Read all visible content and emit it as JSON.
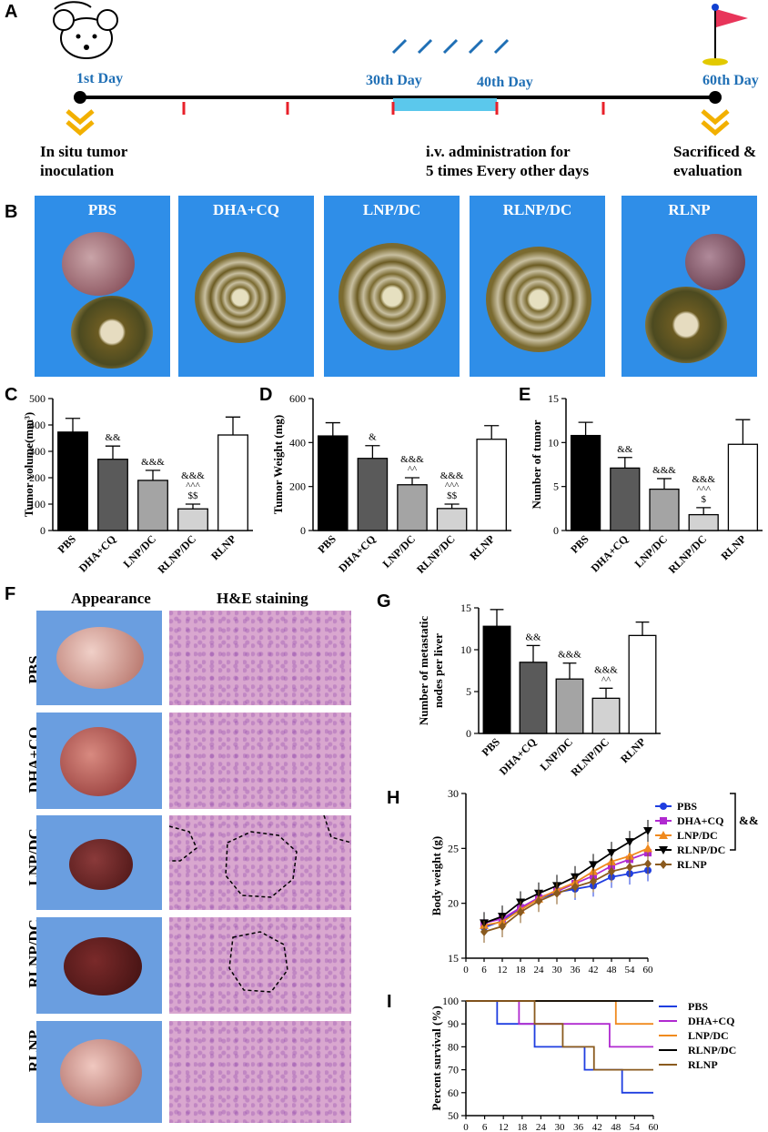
{
  "panels": {
    "A": "A",
    "B": "B",
    "C": "C",
    "D": "D",
    "E": "E",
    "F": "F",
    "G": "G",
    "H": "H",
    "I": "I"
  },
  "timeline": {
    "day1": "1st Day",
    "day30": "30th Day",
    "day40": "40th Day",
    "day60": "60th Day",
    "left_note_1": "In situ tumor",
    "left_note_2": "inoculation",
    "mid_note_1": "i.v. administration for",
    "mid_note_2": "5 times Every other days",
    "right_note_1": "Sacrificed &",
    "right_note_2": "evaluation"
  },
  "photos": [
    "PBS",
    "DHA+CQ",
    "LNP/DC",
    "RLNP/DC",
    "RLNP"
  ],
  "F": {
    "col1": "Appearance",
    "col2": "H&E staining",
    "rows": [
      "PBS",
      "DHA+CQ",
      "LNP/DC",
      "RLNP/DC",
      "RLNP"
    ]
  },
  "colors": {
    "black": "#000000",
    "dark": "#5a5a5a",
    "mid": "#a4a4a4",
    "light": "#d2d2d2",
    "white": "#ffffff",
    "photo_blue": "#2f8ee8"
  },
  "chart_data": [
    {
      "id": "C",
      "type": "bar",
      "categories": [
        "PBS",
        "DHA+CQ",
        "LNP/DC",
        "RLNP/DC",
        "RLNP"
      ],
      "values": [
        373,
        270,
        190,
        82,
        362
      ],
      "errors": [
        52,
        50,
        38,
        18,
        68
      ],
      "ylabel": "Tumor volume(mm³)",
      "ylim": [
        0,
        500
      ],
      "yticks": [
        0,
        100,
        200,
        300,
        400,
        500
      ],
      "annotations": [
        [],
        [
          "&&"
        ],
        [
          "&&&"
        ],
        [
          "&&&",
          "^^^",
          "$$"
        ],
        []
      ]
    },
    {
      "id": "D",
      "type": "bar",
      "categories": [
        "PBS",
        "DHA+CQ",
        "LNP/DC",
        "RLNP/DC",
        "RLNP"
      ],
      "values": [
        430,
        328,
        208,
        100,
        415
      ],
      "errors": [
        60,
        58,
        32,
        20,
        62
      ],
      "ylabel": "Tumor Weight (mg)",
      "ylim": [
        0,
        600
      ],
      "yticks": [
        0,
        200,
        400,
        600
      ],
      "annotations": [
        [],
        [
          "&"
        ],
        [
          "&&&",
          "^^"
        ],
        [
          "&&&",
          "^^^",
          "$$"
        ],
        []
      ]
    },
    {
      "id": "E",
      "type": "bar",
      "categories": [
        "PBS",
        "DHA+CQ",
        "LNP/DC",
        "RLNP/DC",
        "RLNP"
      ],
      "values": [
        10.8,
        7.1,
        4.7,
        1.8,
        9.8
      ],
      "errors": [
        1.5,
        1.2,
        1.2,
        0.8,
        2.8
      ],
      "ylabel": "Number of tumor",
      "ylim": [
        0,
        15
      ],
      "yticks": [
        0,
        5,
        10,
        15
      ],
      "annotations": [
        [],
        [
          "&&"
        ],
        [
          "&&&"
        ],
        [
          "&&&",
          "^^^",
          "$"
        ],
        []
      ]
    },
    {
      "id": "G",
      "type": "bar",
      "categories": [
        "PBS",
        "DHA+CQ",
        "LNP/DC",
        "RLNP/DC",
        "RLNP"
      ],
      "values": [
        12.8,
        8.5,
        6.5,
        4.2,
        11.7
      ],
      "errors": [
        2.0,
        2.0,
        1.9,
        1.2,
        1.6
      ],
      "ylabel": "Number of metastatic nodes per liver",
      "ylim": [
        0,
        15
      ],
      "yticks": [
        0,
        5,
        10,
        15
      ],
      "annotations": [
        [],
        [
          "&&"
        ],
        [
          "&&&"
        ],
        [
          "&&&",
          "^^"
        ],
        []
      ]
    },
    {
      "id": "H",
      "type": "line",
      "xlabel": "",
      "ylabel": "Body weight (g)",
      "xlim": [
        0,
        60
      ],
      "ylim": [
        15,
        30
      ],
      "xticks": [
        0,
        6,
        12,
        18,
        24,
        30,
        36,
        42,
        48,
        54,
        60
      ],
      "yticks": [
        15,
        20,
        25,
        30
      ],
      "x": [
        6,
        12,
        18,
        24,
        30,
        36,
        42,
        48,
        54,
        60
      ],
      "series": [
        {
          "name": "PBS",
          "color": "#1f3ee0",
          "marker": "circle",
          "values": [
            17.8,
            18.4,
            19.5,
            20.4,
            21.0,
            21.3,
            21.6,
            22.4,
            22.7,
            23.0
          ]
        },
        {
          "name": "DHA+CQ",
          "color": "#b02ad0",
          "marker": "square",
          "values": [
            18.2,
            18.6,
            19.6,
            20.5,
            21.1,
            21.8,
            22.5,
            23.4,
            24.0,
            24.6
          ]
        },
        {
          "name": "LNP/DC",
          "color": "#f08a1e",
          "marker": "triangle",
          "values": [
            18.0,
            18.3,
            19.4,
            20.4,
            21.2,
            21.9,
            22.9,
            23.8,
            24.3,
            25.0
          ]
        },
        {
          "name": "RLNP/DC",
          "color": "#000000",
          "marker": "triangle-down",
          "values": [
            18.2,
            18.8,
            20.1,
            20.9,
            21.6,
            22.4,
            23.5,
            24.6,
            25.6,
            26.6
          ]
        },
        {
          "name": "RLNP",
          "color": "#8a5a1e",
          "marker": "diamond",
          "values": [
            17.4,
            17.9,
            19.2,
            20.2,
            20.9,
            21.5,
            22.0,
            22.9,
            23.3,
            23.6
          ]
        }
      ],
      "significance": "&&"
    },
    {
      "id": "I",
      "type": "line",
      "xlabel": "",
      "ylabel": "Percent survival (%)",
      "xlim": [
        0,
        60
      ],
      "ylim": [
        50,
        100
      ],
      "xticks": [
        0,
        6,
        12,
        18,
        24,
        30,
        36,
        42,
        48,
        54,
        60
      ],
      "yticks": [
        50,
        60,
        70,
        80,
        90,
        100
      ],
      "series": [
        {
          "name": "PBS",
          "color": "#1f3ee0",
          "steps": [
            [
              0,
              100
            ],
            [
              10,
              100
            ],
            [
              10,
              90
            ],
            [
              22,
              90
            ],
            [
              22,
              80
            ],
            [
              38,
              80
            ],
            [
              38,
              70
            ],
            [
              50,
              70
            ],
            [
              50,
              60
            ],
            [
              60,
              60
            ]
          ]
        },
        {
          "name": "DHA+CQ",
          "color": "#b02ad0",
          "steps": [
            [
              0,
              100
            ],
            [
              17,
              100
            ],
            [
              17,
              90
            ],
            [
              46,
              90
            ],
            [
              46,
              80
            ],
            [
              60,
              80
            ]
          ]
        },
        {
          "name": "LNP/DC",
          "color": "#f08a1e",
          "steps": [
            [
              0,
              100
            ],
            [
              48,
              100
            ],
            [
              48,
              90
            ],
            [
              60,
              90
            ]
          ]
        },
        {
          "name": "RLNP/DC",
          "color": "#000000",
          "steps": [
            [
              0,
              100
            ],
            [
              60,
              100
            ]
          ]
        },
        {
          "name": "RLNP",
          "color": "#8a5a1e",
          "steps": [
            [
              0,
              100
            ],
            [
              22,
              100
            ],
            [
              22,
              90
            ],
            [
              31,
              90
            ],
            [
              31,
              80
            ],
            [
              41,
              80
            ],
            [
              41,
              70
            ],
            [
              60,
              70
            ]
          ]
        }
      ]
    }
  ]
}
